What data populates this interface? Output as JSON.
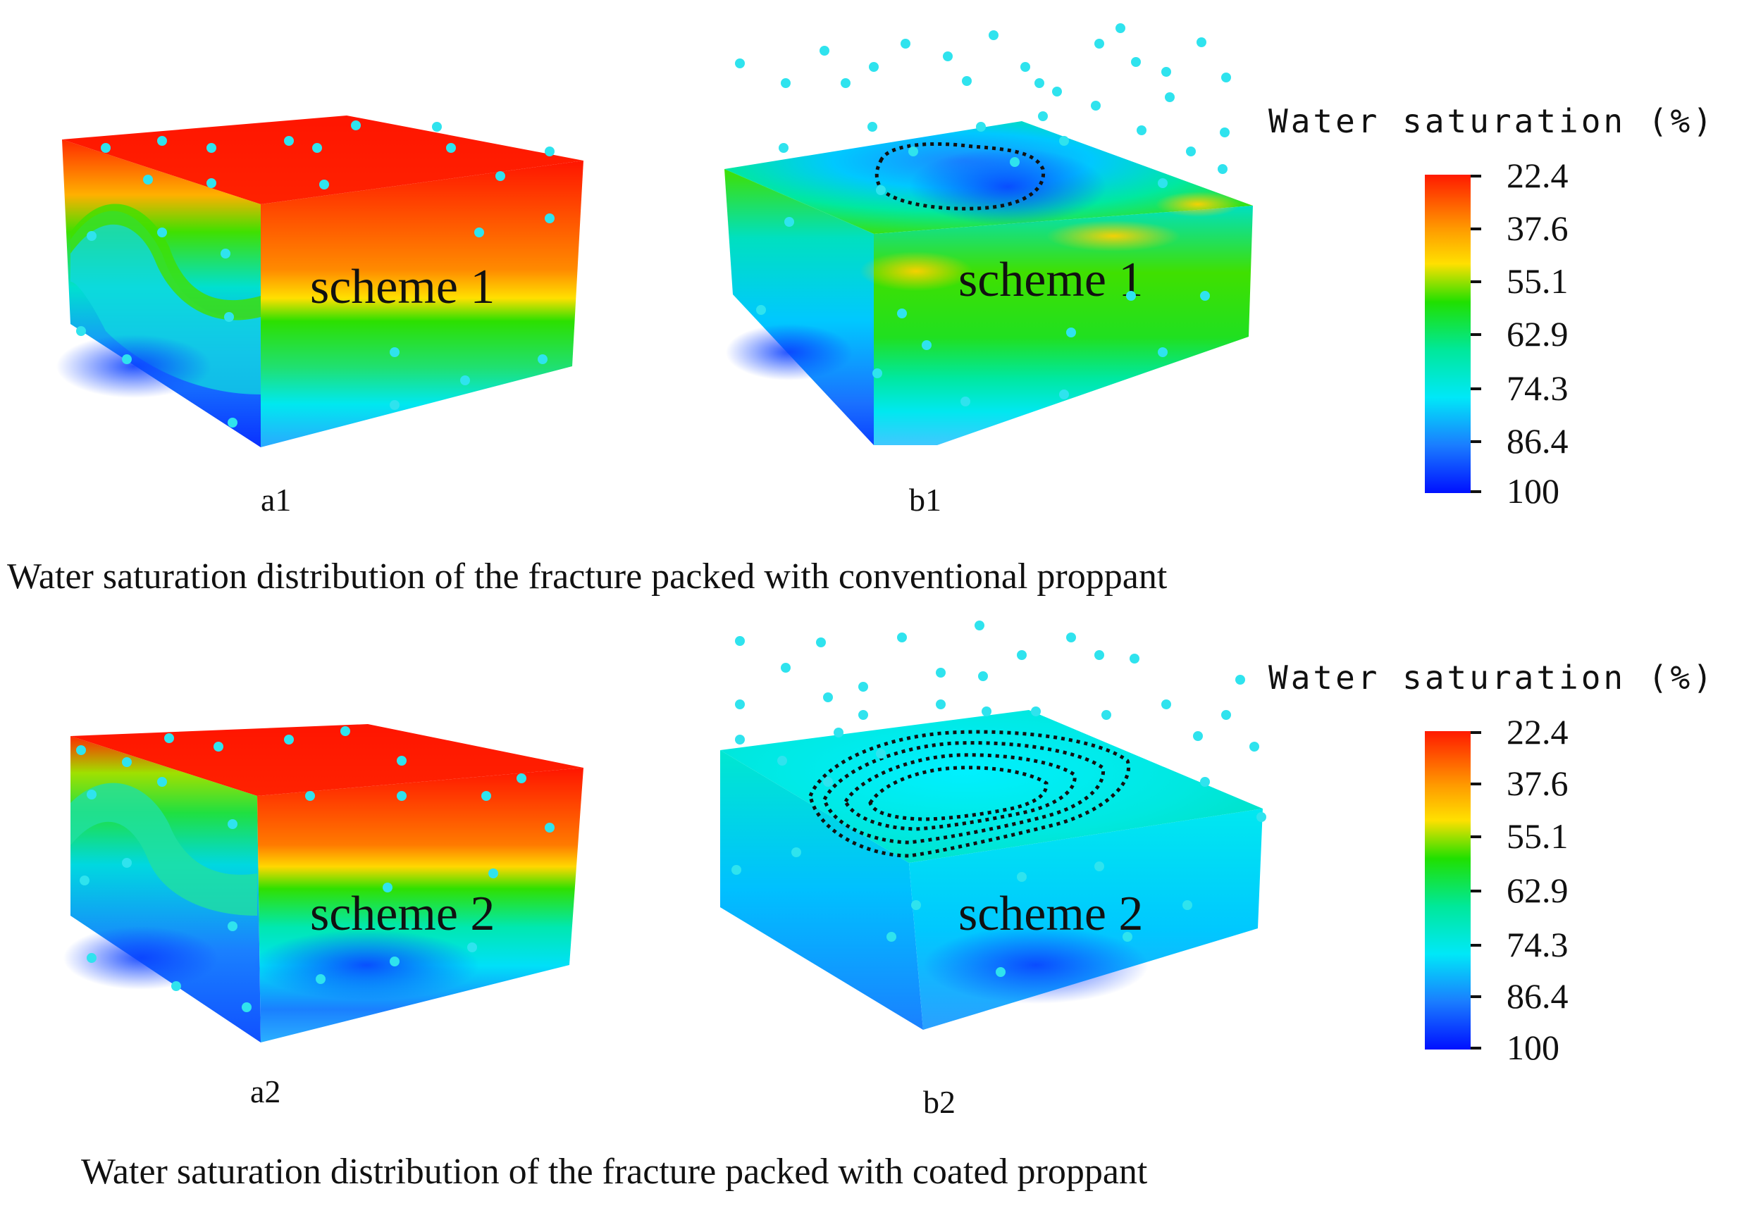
{
  "rows": [
    {
      "caption": "Water saturation distribution of the fracture packed with conventional proppant",
      "panels": [
        {
          "label": "a1",
          "scheme": "scheme 1"
        },
        {
          "label": "b1",
          "scheme": "scheme 1"
        }
      ],
      "colorbar": {
        "title": "Water saturation (%)",
        "ticks": [
          "22.4",
          "37.6",
          "55.1",
          "62.9",
          "74.3",
          "86.4",
          "100"
        ]
      }
    },
    {
      "caption": "Water saturation distribution of the fracture packed with coated proppant",
      "panels": [
        {
          "label": "a2",
          "scheme": "scheme 2"
        },
        {
          "label": "b2",
          "scheme": "scheme 2"
        }
      ],
      "colorbar": {
        "title": "Water saturation (%)",
        "ticks": [
          "22.4",
          "37.6",
          "55.1",
          "62.9",
          "74.3",
          "86.4",
          "100"
        ]
      }
    }
  ],
  "colors": {
    "red": "#ff1a00",
    "yellow": "#ffd000",
    "green": "#1ee000",
    "cyan": "#00e8f0",
    "blue": "#0a3cff",
    "well_points": "#2fe3ee"
  }
}
